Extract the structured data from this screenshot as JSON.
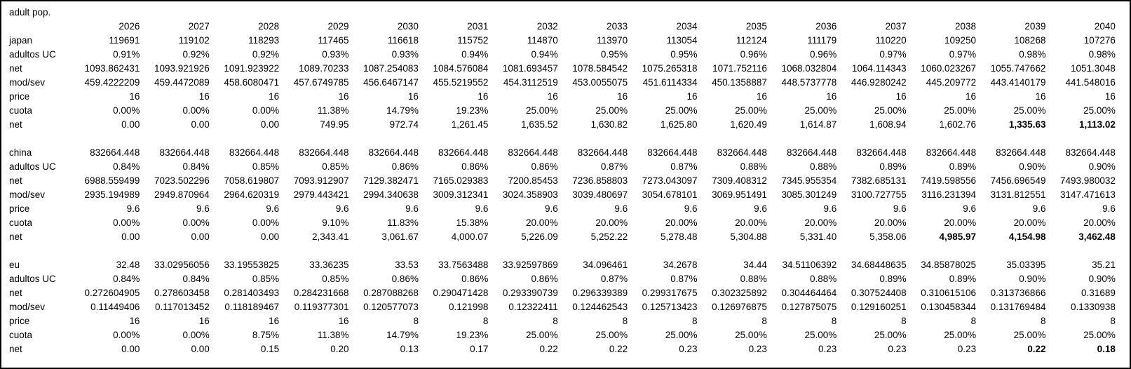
{
  "title": "adult pop.",
  "years": [
    "2026",
    "2027",
    "2028",
    "2029",
    "2030",
    "2031",
    "2032",
    "2033",
    "2034",
    "2035",
    "2036",
    "2037",
    "2038",
    "2039",
    "2040"
  ],
  "blocks": [
    {
      "name": "japan",
      "rows": [
        {
          "label": "japan",
          "values": [
            "119691",
            "119102",
            "118293",
            "117465",
            "116618",
            "115752",
            "114870",
            "113970",
            "113054",
            "112124",
            "111179",
            "110220",
            "109250",
            "108268",
            "107276"
          ],
          "bold": []
        },
        {
          "label": "adultos UC",
          "values": [
            "0.91%",
            "0.92%",
            "0.92%",
            "0.93%",
            "0.93%",
            "0.94%",
            "0.94%",
            "0.95%",
            "0.95%",
            "0.96%",
            "0.96%",
            "0.97%",
            "0.97%",
            "0.98%",
            "0.98%"
          ],
          "bold": []
        },
        {
          "label": "net",
          "values": [
            "1093.862431",
            "1093.921926",
            "1091.923922",
            "1089.70233",
            "1087.254083",
            "1084.576084",
            "1081.693457",
            "1078.584542",
            "1075.265318",
            "1071.752116",
            "1068.032804",
            "1064.114343",
            "1060.023267",
            "1055.747662",
            "1051.3048"
          ],
          "bold": []
        },
        {
          "label": "mod/sev",
          "values": [
            "459.4222209",
            "459.4472089",
            "458.6080471",
            "457.6749785",
            "456.6467147",
            "455.5219552",
            "454.3112519",
            "453.0055075",
            "451.6114334",
            "450.1358887",
            "448.5737778",
            "446.9280242",
            "445.209772",
            "443.4140179",
            "441.548016"
          ],
          "bold": []
        },
        {
          "label": "price",
          "values": [
            "16",
            "16",
            "16",
            "16",
            "16",
            "16",
            "16",
            "16",
            "16",
            "16",
            "16",
            "16",
            "16",
            "16",
            "16"
          ],
          "bold": []
        },
        {
          "label": "cuota",
          "values": [
            "0.00%",
            "0.00%",
            "0.00%",
            "11.38%",
            "14.79%",
            "19.23%",
            "25.00%",
            "25.00%",
            "25.00%",
            "25.00%",
            "25.00%",
            "25.00%",
            "25.00%",
            "25.00%",
            "25.00%"
          ],
          "bold": []
        },
        {
          "label": "net",
          "values": [
            "0.00",
            "0.00",
            "0.00",
            "749.95",
            "972.74",
            "1,261.45",
            "1,635.52",
            "1,630.82",
            "1,625.80",
            "1,620.49",
            "1,614.87",
            "1,608.94",
            "1,602.76",
            "1,335.63",
            "1,113.02"
          ],
          "bold": [
            13,
            14
          ]
        }
      ]
    },
    {
      "name": "china",
      "rows": [
        {
          "label": "china",
          "values": [
            "832664.448",
            "832664.448",
            "832664.448",
            "832664.448",
            "832664.448",
            "832664.448",
            "832664.448",
            "832664.448",
            "832664.448",
            "832664.448",
            "832664.448",
            "832664.448",
            "832664.448",
            "832664.448",
            "832664.448"
          ],
          "bold": []
        },
        {
          "label": "adultos UC",
          "values": [
            "0.84%",
            "0.84%",
            "0.85%",
            "0.85%",
            "0.86%",
            "0.86%",
            "0.86%",
            "0.87%",
            "0.87%",
            "0.88%",
            "0.88%",
            "0.89%",
            "0.89%",
            "0.90%",
            "0.90%"
          ],
          "bold": []
        },
        {
          "label": "net",
          "values": [
            "6988.559499",
            "7023.502296",
            "7058.619807",
            "7093.912907",
            "7129.382471",
            "7165.029383",
            "7200.85453",
            "7236.858803",
            "7273.043097",
            "7309.408312",
            "7345.955354",
            "7382.685131",
            "7419.598556",
            "7456.696549",
            "7493.980032"
          ],
          "bold": []
        },
        {
          "label": "mod/sev",
          "values": [
            "2935.194989",
            "2949.870964",
            "2964.620319",
            "2979.443421",
            "2994.340638",
            "3009.312341",
            "3024.358903",
            "3039.480697",
            "3054.678101",
            "3069.951491",
            "3085.301249",
            "3100.727755",
            "3116.231394",
            "3131.812551",
            "3147.471613"
          ],
          "bold": []
        },
        {
          "label": "price",
          "values": [
            "9.6",
            "9.6",
            "9.6",
            "9.6",
            "9.6",
            "9.6",
            "9.6",
            "9.6",
            "9.6",
            "9.6",
            "9.6",
            "9.6",
            "9.6",
            "9.6",
            "9.6"
          ],
          "bold": []
        },
        {
          "label": "cuota",
          "values": [
            "0.00%",
            "0.00%",
            "0.00%",
            "9.10%",
            "11.83%",
            "15.38%",
            "20.00%",
            "20.00%",
            "20.00%",
            "20.00%",
            "20.00%",
            "20.00%",
            "20.00%",
            "20.00%",
            "20.00%"
          ],
          "bold": []
        },
        {
          "label": "net",
          "values": [
            "0.00",
            "0.00",
            "0.00",
            "2,343.41",
            "3,061.67",
            "4,000.07",
            "5,226.09",
            "5,252.22",
            "5,278.48",
            "5,304.88",
            "5,331.40",
            "5,358.06",
            "4,985.97",
            "4,154.98",
            "3,462.48"
          ],
          "bold": [
            12,
            13,
            14
          ]
        }
      ]
    },
    {
      "name": "eu",
      "rows": [
        {
          "label": "eu",
          "values": [
            "32.48",
            "33.02956056",
            "33.19553825",
            "33.36235",
            "33.53",
            "33.7563488",
            "33.92597869",
            "34.096461",
            "34.2678",
            "34.44",
            "34.51106392",
            "34.68448635",
            "34.85878025",
            "35.03395",
            "35.21"
          ],
          "bold": []
        },
        {
          "label": "adultos UC",
          "values": [
            "0.84%",
            "0.84%",
            "0.85%",
            "0.85%",
            "0.86%",
            "0.86%",
            "0.86%",
            "0.87%",
            "0.87%",
            "0.88%",
            "0.88%",
            "0.89%",
            "0.89%",
            "0.90%",
            "0.90%"
          ],
          "bold": []
        },
        {
          "label": "net",
          "values": [
            "0.272604905",
            "0.278603458",
            "0.281403493",
            "0.284231668",
            "0.287088268",
            "0.290471428",
            "0.293390739",
            "0.296339389",
            "0.299317675",
            "0.302325892",
            "0.304464464",
            "0.307524408",
            "0.310615106",
            "0.313736866",
            "0.31689"
          ],
          "bold": []
        },
        {
          "label": "mod/sev",
          "values": [
            "0.11449406",
            "0.117013452",
            "0.118189467",
            "0.119377301",
            "0.120577073",
            "0.121998",
            "0.12322411",
            "0.124462543",
            "0.125713423",
            "0.126976875",
            "0.127875075",
            "0.129160251",
            "0.130458344",
            "0.131769484",
            "0.1330938"
          ],
          "bold": []
        },
        {
          "label": "price",
          "values": [
            "16",
            "16",
            "16",
            "16",
            "8",
            "8",
            "8",
            "8",
            "8",
            "8",
            "8",
            "8",
            "8",
            "8",
            "8"
          ],
          "bold": []
        },
        {
          "label": "cuota",
          "values": [
            "0.00%",
            "0.00%",
            "8.75%",
            "11.38%",
            "14.79%",
            "19.23%",
            "25.00%",
            "25.00%",
            "25.00%",
            "25.00%",
            "25.00%",
            "25.00%",
            "25.00%",
            "25.00%",
            "25.00%"
          ],
          "bold": []
        },
        {
          "label": "net",
          "values": [
            "0.00",
            "0.00",
            "0.15",
            "0.20",
            "0.13",
            "0.17",
            "0.22",
            "0.22",
            "0.23",
            "0.23",
            "0.23",
            "0.23",
            "0.23",
            "0.22",
            "0.18"
          ],
          "bold": [
            13,
            14
          ]
        }
      ]
    }
  ]
}
